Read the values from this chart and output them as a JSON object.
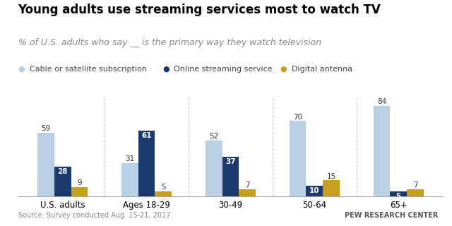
{
  "title": "Young adults use streaming services most to watch TV",
  "subtitle": "% of U.S. adults who say __ is the primary way they watch television",
  "categories": [
    "U.S. adults",
    "Ages 18-29",
    "30-49",
    "50-64",
    "65+"
  ],
  "series": {
    "Cable or satellite subscription": [
      59,
      31,
      52,
      70,
      84
    ],
    "Online streaming service": [
      28,
      61,
      37,
      10,
      5
    ],
    "Digital antenna": [
      9,
      5,
      7,
      15,
      7
    ]
  },
  "colors": {
    "Cable or satellite subscription": "#b8cfe4",
    "Online streaming service": "#1a3a6e",
    "Digital antenna": "#c8a020"
  },
  "bar_width": 0.2,
  "ylim": [
    0,
    92
  ],
  "source": "Source: Survey conducted Aug. 15-21, 2017.",
  "credit": "PEW RESEARCH CENTER",
  "legend_labels": [
    "Cable or satellite subscription",
    "Online streaming service",
    "Digital antenna"
  ],
  "title_fontsize": 12,
  "subtitle_fontsize": 9,
  "label_fontsize": 7.5,
  "tick_fontsize": 8.5,
  "legend_fontsize": 8
}
